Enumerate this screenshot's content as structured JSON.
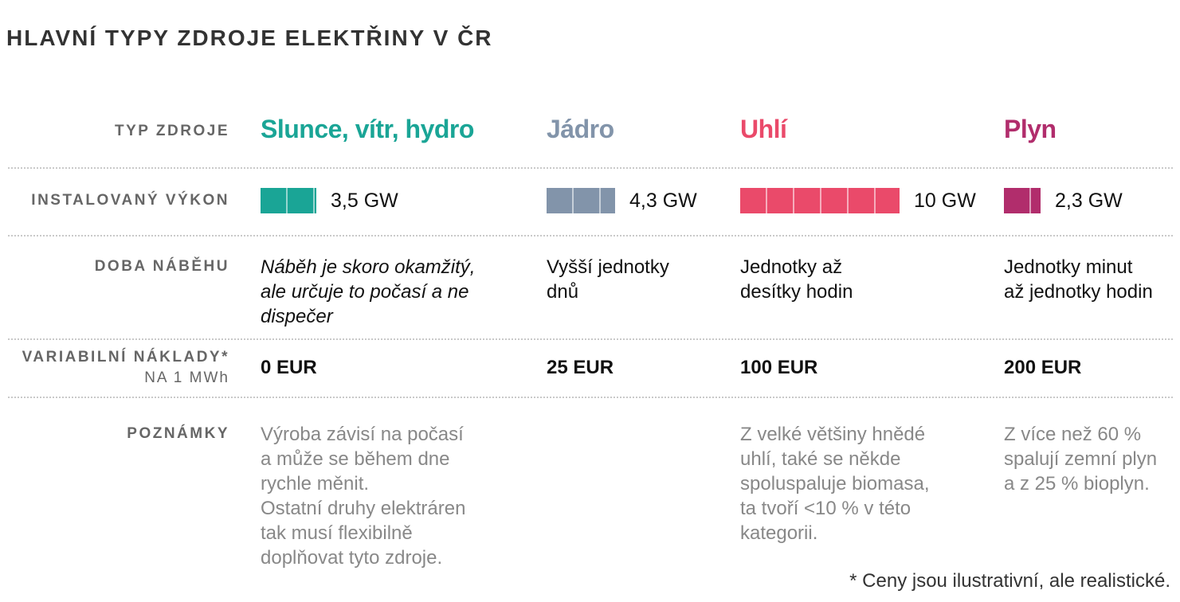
{
  "title": "HLAVNÍ TYPY ZDROJE ELEKTŘINY V ČR",
  "row_labels": {
    "type": "TYP ZDROJE",
    "capacity": "INSTALOVANÝ VÝKON",
    "ramp": "DOBA NÁBĚHU",
    "costs": "VARIABILNÍ NÁKLADY*",
    "costs_sub": "NA 1 MWh",
    "notes": "POZNÁMKY"
  },
  "chart_data": {
    "type": "table",
    "unit_per_segment_gw": 1.7,
    "sources": [
      {
        "name": "Slunce, vítr, hydro",
        "color": "#1aa596",
        "capacity_gw": 3.5,
        "capacity_label": "3,5 GW",
        "ramp_lines": [
          "Náběh je skoro okamžitý,",
          "ale určuje to počasí a ne",
          "dispečer"
        ],
        "cost": "0 EUR",
        "note_lines": [
          "Výroba závisí na počasí",
          "a může se během dne",
          "rychle měnit.",
          "Ostatní druhy elektráren",
          "tak musí flexibilně",
          "doplňovat tyto zdroje."
        ]
      },
      {
        "name": "Jádro",
        "color": "#8294aa",
        "capacity_gw": 4.3,
        "capacity_label": "4,3 GW",
        "ramp_lines": [
          "Vyšší jednotky",
          "dnů"
        ],
        "cost": "25 EUR",
        "note_lines": []
      },
      {
        "name": "Uhlí",
        "color": "#ea4a6a",
        "capacity_gw": 10,
        "capacity_label": "10 GW",
        "ramp_lines": [
          "Jednotky až",
          "desítky hodin"
        ],
        "cost": "100 EUR",
        "note_lines": [
          "Z velké většiny hnědé",
          "uhlí, také se někde",
          "spoluspaluje biomasa,",
          "ta tvoří <10 % v této",
          "kategorii."
        ]
      },
      {
        "name": "Plyn",
        "color": "#b12d6c",
        "capacity_gw": 2.3,
        "capacity_label": "2,3 GW",
        "ramp_lines": [
          "Jednotky minut",
          "až jednotky hodin"
        ],
        "cost": "200 EUR",
        "note_lines": [
          "Z více než 60 %",
          "spalují zemní plyn",
          "a z 25 % bioplyn."
        ]
      }
    ]
  },
  "footnote": "* Ceny jsou ilustrativní, ale realistické."
}
